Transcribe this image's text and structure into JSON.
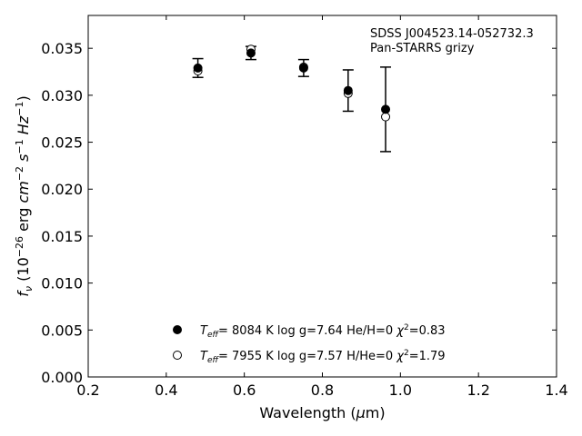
{
  "chart_data": {
    "type": "scatter",
    "xlabel": "Wavelength (μm)",
    "ylabel": "f_ν (10⁻²⁶ erg cm⁻² s⁻¹ Hz⁻¹)",
    "xlim": [
      0.2,
      1.4
    ],
    "ylim": [
      0.0,
      0.0385
    ],
    "xticks": [
      0.2,
      0.4,
      0.6,
      0.8,
      1.0,
      1.2,
      1.4
    ],
    "xtick_labels": [
      "0.2",
      "0.4",
      "0.6",
      "0.8",
      "1.0",
      "1.2",
      "1.4"
    ],
    "yticks": [
      0.0,
      0.005,
      0.01,
      0.015,
      0.02,
      0.025,
      0.03,
      0.035
    ],
    "ytick_labels": [
      "0.000",
      "0.005",
      "0.010",
      "0.015",
      "0.020",
      "0.025",
      "0.030",
      "0.035"
    ],
    "grid": false,
    "annotations": [
      {
        "text": "SDSS J004523.14-052732.3"
      },
      {
        "text": "Pan-STARRS grizy"
      }
    ],
    "observed": {
      "x": [
        0.481,
        0.617,
        0.752,
        0.866,
        0.962
      ],
      "y": [
        0.0329,
        0.0345,
        0.0329,
        0.0305,
        0.0285
      ],
      "yerr": [
        0.001,
        0.0007,
        0.0009,
        0.0022,
        0.0045
      ]
    },
    "series": [
      {
        "legend_label": "T_eff=  8084 K  log g=7.64  He/H=0  χ²=0.83",
        "marker": "filled-circle",
        "x": [
          0.481,
          0.617,
          0.752,
          0.866,
          0.962
        ],
        "y": [
          0.0329,
          0.0345,
          0.0329,
          0.0305,
          0.0285
        ]
      },
      {
        "legend_label": "T_eff=  7955 K  log g=7.57  H/He=0  χ²=1.79",
        "marker": "open-circle",
        "x": [
          0.481,
          0.617,
          0.752,
          0.866,
          0.962
        ],
        "y": [
          0.0326,
          0.0349,
          0.033,
          0.0302,
          0.0277
        ]
      }
    ],
    "legend_position": "lower-center"
  }
}
